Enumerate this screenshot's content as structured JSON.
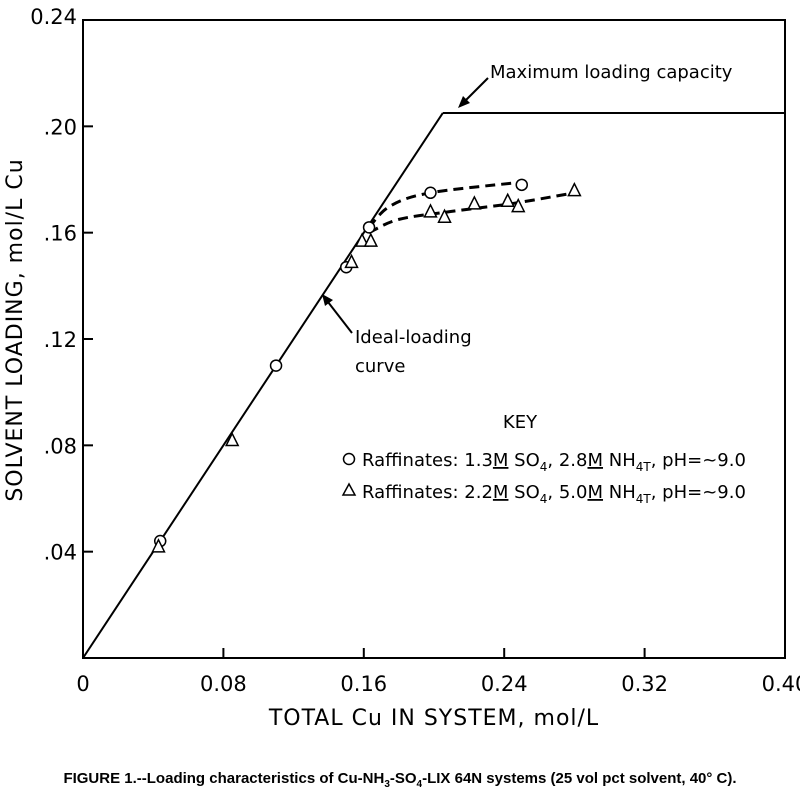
{
  "chart_data": {
    "type": "line",
    "xlabel": "TOTAL Cu IN SYSTEM, mol/L",
    "ylabel": "SOLVENT LOADING, mol/L Cu",
    "xlim": [
      0,
      0.4
    ],
    "ylim": [
      0,
      0.24
    ],
    "x_ticks": [
      "0",
      "0.08",
      "0.16",
      "0.24",
      "0.32",
      "0.40"
    ],
    "y_ticks": [
      ".04",
      ".08",
      ".12",
      ".16",
      ".20",
      "0.24"
    ],
    "grid": false,
    "lines": {
      "ideal_loading": {
        "x": [
          0,
          0.205
        ],
        "y": [
          0,
          0.205
        ]
      },
      "max_capacity": {
        "x": [
          0.205,
          0.4
        ],
        "y": [
          0.205,
          0.205
        ]
      }
    },
    "series": [
      {
        "marker": "circle",
        "points": [
          {
            "x": 0.044,
            "y": 0.044
          },
          {
            "x": 0.11,
            "y": 0.11
          },
          {
            "x": 0.15,
            "y": 0.147
          },
          {
            "x": 0.163,
            "y": 0.162
          },
          {
            "x": 0.198,
            "y": 0.175
          },
          {
            "x": 0.25,
            "y": 0.178
          }
        ],
        "curve": [
          [
            0.163,
            0.162
          ],
          [
            0.175,
            0.17
          ],
          [
            0.198,
            0.175
          ],
          [
            0.25,
            0.179
          ]
        ]
      },
      {
        "marker": "triangle",
        "points": [
          {
            "x": 0.043,
            "y": 0.042
          },
          {
            "x": 0.085,
            "y": 0.082
          },
          {
            "x": 0.153,
            "y": 0.149
          },
          {
            "x": 0.159,
            "y": 0.157
          },
          {
            "x": 0.164,
            "y": 0.157
          },
          {
            "x": 0.198,
            "y": 0.168
          },
          {
            "x": 0.206,
            "y": 0.166
          },
          {
            "x": 0.223,
            "y": 0.171
          },
          {
            "x": 0.242,
            "y": 0.172
          },
          {
            "x": 0.248,
            "y": 0.17
          },
          {
            "x": 0.28,
            "y": 0.176
          }
        ],
        "curve": [
          [
            0.163,
            0.16
          ],
          [
            0.18,
            0.165
          ],
          [
            0.21,
            0.168
          ],
          [
            0.245,
            0.171
          ],
          [
            0.28,
            0.175
          ]
        ]
      }
    ],
    "annotations": {
      "max": {
        "text": "Maximum loading capacity",
        "x": 0.205,
        "y": 0.205
      },
      "ideal_line1": "Ideal-loading",
      "ideal_line2": "curve",
      "ideal_point": {
        "x": 0.138,
        "y": 0.138
      }
    },
    "key": {
      "title": "KEY",
      "entries": [
        {
          "marker": "circle",
          "label": "Raffinates: 1.3M SO4, 2.8M NH4T, pH=~9.0"
        },
        {
          "marker": "triangle",
          "label": "Raffinates: 2.2M SO4, 5.0M NH4T, pH=~9.0"
        }
      ]
    }
  },
  "caption": {
    "text": "FIGURE 1.--Loading characteristics of Cu-NH3-SO4-LIX 64N systems (25 vol pct solvent, 40° C)."
  }
}
